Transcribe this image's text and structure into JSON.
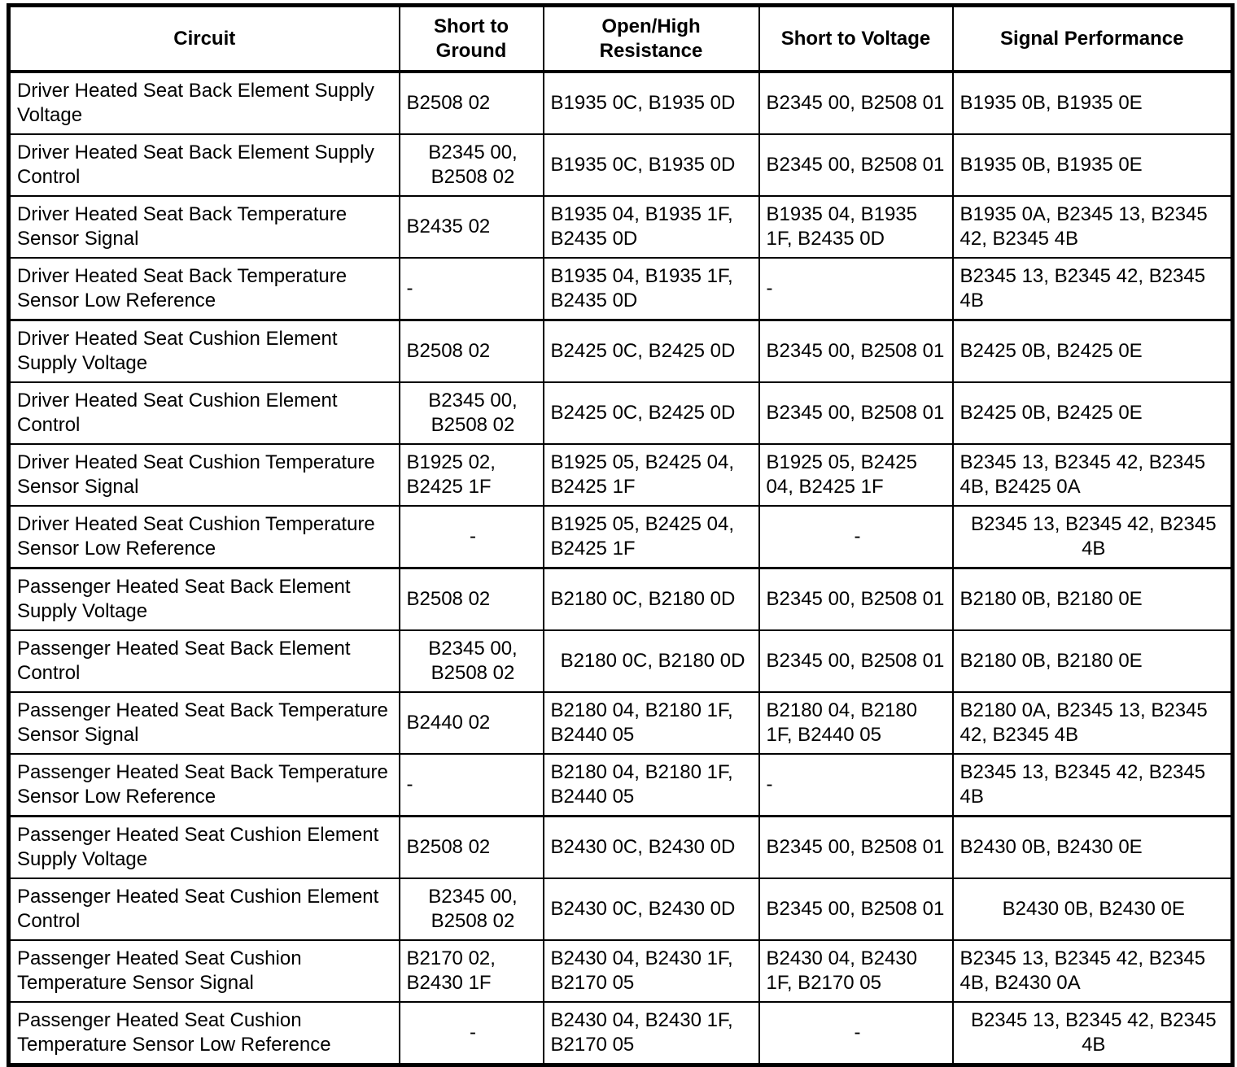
{
  "page": {
    "background_color": "#ffffff",
    "text_color": "#000000",
    "border_color": "#000000"
  },
  "table": {
    "headers": [
      "Circuit",
      "Short to\nGround",
      "Open/High\nResistance",
      "Short to Voltage",
      "Signal Performance"
    ],
    "rows": [
      {
        "section_end": false,
        "cells": [
          {
            "text": "Driver Heated Seat Back Element Supply Voltage",
            "align": "left"
          },
          {
            "text": "B2508 02",
            "align": "left"
          },
          {
            "text": "B1935 0C, B1935 0D",
            "align": "left"
          },
          {
            "text": "B2345 00, B2508 01",
            "align": "left"
          },
          {
            "text": "B1935 0B, B1935 0E",
            "align": "left"
          }
        ]
      },
      {
        "section_end": false,
        "cells": [
          {
            "text": "Driver Heated Seat Back Element Supply Control",
            "align": "left"
          },
          {
            "text": "B2345 00, B2508 02",
            "align": "center"
          },
          {
            "text": "B1935 0C, B1935 0D",
            "align": "left"
          },
          {
            "text": "B2345 00, B2508 01",
            "align": "left"
          },
          {
            "text": "B1935 0B, B1935 0E",
            "align": "left"
          }
        ]
      },
      {
        "section_end": false,
        "cells": [
          {
            "text": "Driver Heated Seat Back Temperature Sensor Signal",
            "align": "left"
          },
          {
            "text": "B2435 02",
            "align": "left"
          },
          {
            "text": "B1935 04, B1935 1F, B2435 0D",
            "align": "left"
          },
          {
            "text": "B1935 04, B1935 1F, B2435 0D",
            "align": "left"
          },
          {
            "text": "B1935 0A, B2345 13, B2345 42, B2345 4B",
            "align": "left"
          }
        ]
      },
      {
        "section_end": true,
        "cells": [
          {
            "text": "Driver Heated Seat Back Temperature Sensor Low Reference",
            "align": "left"
          },
          {
            "text": "-",
            "align": "left"
          },
          {
            "text": "B1935 04, B1935 1F, B2435 0D",
            "align": "left"
          },
          {
            "text": "-",
            "align": "left"
          },
          {
            "text": "B2345 13, B2345 42, B2345 4B",
            "align": "left"
          }
        ]
      },
      {
        "section_end": false,
        "cells": [
          {
            "text": "Driver Heated Seat Cushion Element Supply Voltage",
            "align": "left"
          },
          {
            "text": "B2508 02",
            "align": "left"
          },
          {
            "text": "B2425 0C, B2425 0D",
            "align": "left"
          },
          {
            "text": "B2345 00, B2508 01",
            "align": "left"
          },
          {
            "text": "B2425 0B, B2425 0E",
            "align": "left"
          }
        ]
      },
      {
        "section_end": false,
        "cells": [
          {
            "text": "Driver Heated Seat Cushion Element Control",
            "align": "left"
          },
          {
            "text": "B2345 00, B2508 02",
            "align": "center"
          },
          {
            "text": "B2425 0C, B2425 0D",
            "align": "left"
          },
          {
            "text": "B2345 00, B2508 01",
            "align": "left"
          },
          {
            "text": "B2425 0B, B2425 0E",
            "align": "left"
          }
        ]
      },
      {
        "section_end": false,
        "cells": [
          {
            "text": "Driver Heated Seat Cushion Temperature Sensor Signal",
            "align": "left"
          },
          {
            "text": "B1925 02, B2425 1F",
            "align": "left"
          },
          {
            "text": "B1925 05, B2425 04, B2425 1F",
            "align": "left"
          },
          {
            "text": "B1925 05, B2425 04, B2425 1F",
            "align": "left"
          },
          {
            "text": "B2345 13, B2345 42, B2345 4B, B2425 0A",
            "align": "left"
          }
        ]
      },
      {
        "section_end": true,
        "cells": [
          {
            "text": "Driver Heated Seat Cushion Temperature Sensor Low Reference",
            "align": "left"
          },
          {
            "text": "-",
            "align": "center"
          },
          {
            "text": "B1925 05, B2425 04, B2425 1F",
            "align": "left"
          },
          {
            "text": "-",
            "align": "center"
          },
          {
            "text": "B2345 13, B2345 42, B2345 4B",
            "align": "center"
          }
        ]
      },
      {
        "section_end": false,
        "cells": [
          {
            "text": "Passenger Heated Seat Back Element Supply Voltage",
            "align": "left"
          },
          {
            "text": "B2508 02",
            "align": "left"
          },
          {
            "text": "B2180 0C, B2180 0D",
            "align": "left"
          },
          {
            "text": "B2345 00, B2508 01",
            "align": "left"
          },
          {
            "text": "B2180 0B, B2180 0E",
            "align": "left"
          }
        ]
      },
      {
        "section_end": false,
        "cells": [
          {
            "text": "Passenger Heated Seat Back Element Control",
            "align": "left"
          },
          {
            "text": "B2345 00, B2508 02",
            "align": "center"
          },
          {
            "text": "B2180 0C, B2180 0D",
            "align": "center"
          },
          {
            "text": "B2345 00, B2508 01",
            "align": "left"
          },
          {
            "text": "B2180 0B, B2180 0E",
            "align": "left"
          }
        ]
      },
      {
        "section_end": false,
        "cells": [
          {
            "text": "Passenger Heated Seat Back Temperature Sensor Signal",
            "align": "left"
          },
          {
            "text": "B2440 02",
            "align": "left"
          },
          {
            "text": "B2180 04, B2180 1F, B2440 05",
            "align": "left"
          },
          {
            "text": "B2180 04, B2180 1F, B2440 05",
            "align": "left"
          },
          {
            "text": "B2180 0A, B2345 13, B2345 42, B2345 4B",
            "align": "left"
          }
        ]
      },
      {
        "section_end": true,
        "cells": [
          {
            "text": "Passenger Heated Seat Back Temperature Sensor Low Reference",
            "align": "left"
          },
          {
            "text": "-",
            "align": "left"
          },
          {
            "text": "B2180 04, B2180 1F, B2440 05",
            "align": "left"
          },
          {
            "text": "-",
            "align": "left"
          },
          {
            "text": "B2345 13, B2345 42, B2345 4B",
            "align": "left"
          }
        ]
      },
      {
        "section_end": false,
        "cells": [
          {
            "text": "Passenger Heated Seat Cushion Element Supply Voltage",
            "align": "left"
          },
          {
            "text": "B2508 02",
            "align": "left"
          },
          {
            "text": "B2430 0C, B2430 0D",
            "align": "left"
          },
          {
            "text": "B2345 00, B2508 01",
            "align": "left"
          },
          {
            "text": "B2430 0B, B2430 0E",
            "align": "left"
          }
        ]
      },
      {
        "section_end": false,
        "cells": [
          {
            "text": "Passenger Heated Seat Cushion Element Control",
            "align": "left"
          },
          {
            "text": "B2345 00, B2508 02",
            "align": "center"
          },
          {
            "text": "B2430 0C, B2430 0D",
            "align": "left"
          },
          {
            "text": "B2345 00, B2508 01",
            "align": "left"
          },
          {
            "text": "B2430 0B, B2430 0E",
            "align": "center"
          }
        ]
      },
      {
        "section_end": false,
        "cells": [
          {
            "text": "Passenger Heated Seat Cushion Temperature Sensor Signal",
            "align": "left"
          },
          {
            "text": "B2170 02, B2430 1F",
            "align": "left"
          },
          {
            "text": "B2430 04, B2430 1F, B2170 05",
            "align": "left"
          },
          {
            "text": "B2430 04, B2430 1F, B2170 05",
            "align": "left"
          },
          {
            "text": "B2345 13, B2345 42, B2345 4B, B2430 0A",
            "align": "left"
          }
        ]
      },
      {
        "section_end": false,
        "cells": [
          {
            "text": "Passenger Heated Seat Cushion Temperature Sensor Low Reference",
            "align": "left"
          },
          {
            "text": "-",
            "align": "center"
          },
          {
            "text": "B2430 04, B2430 1F, B2170 05",
            "align": "left"
          },
          {
            "text": "-",
            "align": "center"
          },
          {
            "text": "B2345 13, B2345 42, B2345 4B",
            "align": "center"
          }
        ]
      }
    ]
  }
}
